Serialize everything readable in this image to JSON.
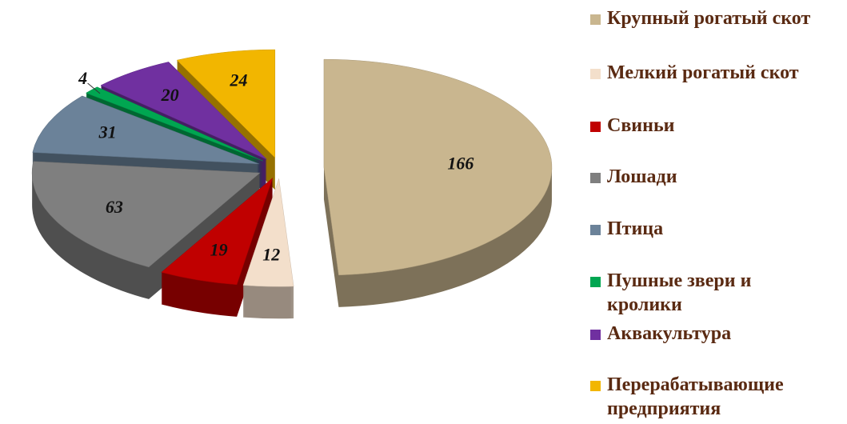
{
  "chart_data": {
    "type": "pie",
    "categories": [
      "Крупный рогатый скот",
      "Мелкий рогатый скот",
      "Свиньи",
      "Лошади",
      "Птица",
      "Пушные звери и кролики",
      "Аквакультура",
      "Перерабатывающие предприятия"
    ],
    "values": [
      166,
      12,
      19,
      63,
      31,
      4,
      20,
      24
    ],
    "colors": [
      "#c9b68f",
      "#f3dfcb",
      "#c00000",
      "#7f7f7f",
      "#6b8299",
      "#00a651",
      "#7030a0",
      "#f2b600"
    ]
  }
}
